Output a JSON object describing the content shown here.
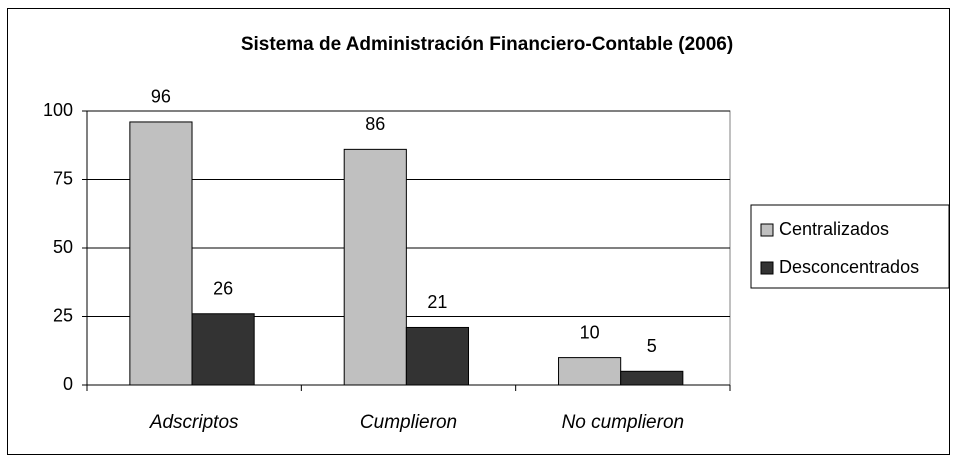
{
  "chart_data": {
    "type": "bar",
    "title": "Sistema de Administración Financiero-Contable (2006)",
    "categories": [
      "Adscriptos",
      "Cumplieron",
      "No cumplieron"
    ],
    "series": [
      {
        "name": "Centralizados",
        "color": "#c0c0c0",
        "values": [
          96,
          86,
          10
        ]
      },
      {
        "name": "Desconcentrados",
        "color": "#333333",
        "values": [
          26,
          21,
          5
        ]
      }
    ],
    "ylim": [
      0,
      100
    ],
    "yticks": [
      0,
      25,
      50,
      75,
      100
    ],
    "grid": true,
    "legend": "right"
  }
}
